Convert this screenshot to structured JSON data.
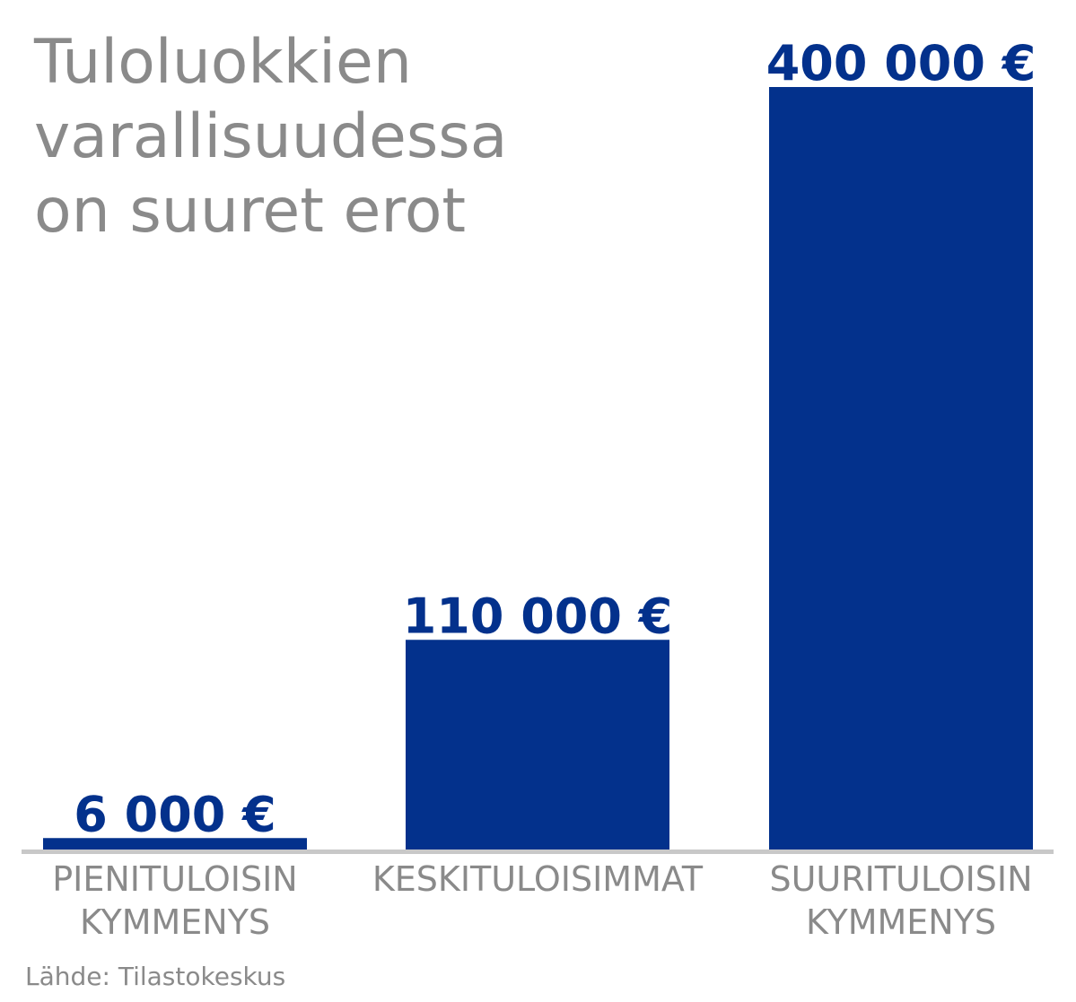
{
  "chart_data": {
    "type": "bar",
    "title_lines": [
      "Tuloluokkien",
      "varallisuudessa",
      "on suuret erot"
    ],
    "categories": [
      [
        "PIENITULOISIN",
        "KYMMENYS"
      ],
      [
        "KESKITULOISIMMAT"
      ],
      [
        "SUURITULOISIN",
        "KYMMENYS"
      ]
    ],
    "values": [
      6000,
      110000,
      400000
    ],
    "value_labels": [
      "6 000 €",
      "110 000 €",
      "400 000 €"
    ],
    "ylim": [
      0,
      400000
    ],
    "grid": false,
    "legend": "none",
    "colors": {
      "bar": "#03318c",
      "baseline": "#c8c8c8",
      "text": "#8a8a8a"
    }
  },
  "source": "Lähde: Tilastokeskus"
}
